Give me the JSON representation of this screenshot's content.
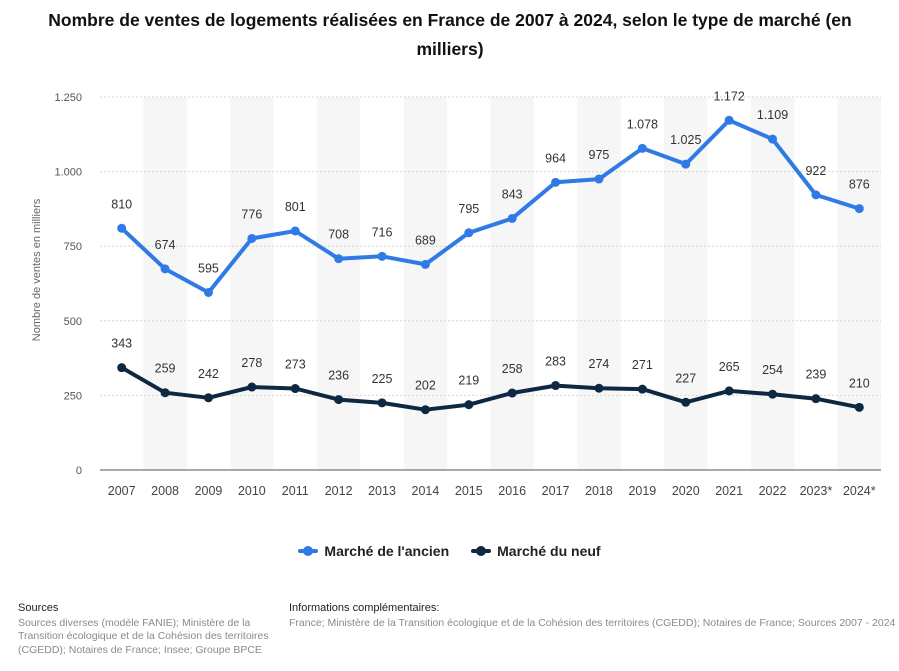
{
  "title": "Nombre de ventes de logements réalisées en France de 2007 à 2024, selon le type de marché (en milliers)",
  "colors": {
    "ancien": "#2f7ae5",
    "neuf": "#0e2841",
    "grid": "#d6d6d6",
    "band": "#f6f6f6"
  },
  "chart_data": {
    "type": "line",
    "title": "Nombre de ventes de logements réalisées en France de 2007 à 2024, selon le type de marché (en milliers)",
    "ylabel": "Nombre de ventes en milliers",
    "xlabel": "",
    "ylim": [
      0,
      1250
    ],
    "yticks": [
      0,
      250,
      500,
      750,
      1000,
      1250
    ],
    "ytick_labels": [
      "0",
      "250",
      "500",
      "750",
      "1.000",
      "1.250"
    ],
    "grid": true,
    "legend_position": "bottom",
    "categories": [
      "2007",
      "2008",
      "2009",
      "2010",
      "2011",
      "2012",
      "2013",
      "2014",
      "2015",
      "2016",
      "2017",
      "2018",
      "2019",
      "2020",
      "2021",
      "2022",
      "2023*",
      "2024*"
    ],
    "series": [
      {
        "name": "Marché de l'ancien",
        "color": "#2f7ae5",
        "values": [
          810,
          674,
          595,
          776,
          801,
          708,
          716,
          689,
          795,
          843,
          964,
          975,
          1078,
          1025,
          1172,
          1109,
          922,
          876
        ],
        "labels": [
          "810",
          "674",
          "595",
          "776",
          "801",
          "708",
          "716",
          "689",
          "795",
          "843",
          "964",
          "975",
          "1.078",
          "1.025",
          "1.172",
          "1.109",
          "922",
          "876"
        ]
      },
      {
        "name": "Marché du neuf",
        "color": "#0e2841",
        "values": [
          343,
          259,
          242,
          278,
          273,
          236,
          225,
          202,
          219,
          258,
          283,
          274,
          271,
          227,
          265,
          254,
          239,
          210
        ],
        "labels": [
          "343",
          "259",
          "242",
          "278",
          "273",
          "236",
          "225",
          "202",
          "219",
          "258",
          "283",
          "274",
          "271",
          "227",
          "265",
          "254",
          "239",
          "210"
        ]
      }
    ]
  },
  "legend": {
    "ancien": "Marché de l'ancien",
    "neuf": "Marché du neuf"
  },
  "footer": {
    "sources_title": "Sources",
    "sources_text": "Sources diverses (modèle FANIE); Ministère de la Transition écologique et de la Cohésion des territoires (CGEDD); Notaires de France; Insee; Groupe BPCE",
    "info_title": "Informations complémentaires:",
    "info_text": "France; Ministère de la Transition écologique et de la Cohésion des territoires (CGEDD); Notaires de France; Sources 2007 - 2024"
  }
}
